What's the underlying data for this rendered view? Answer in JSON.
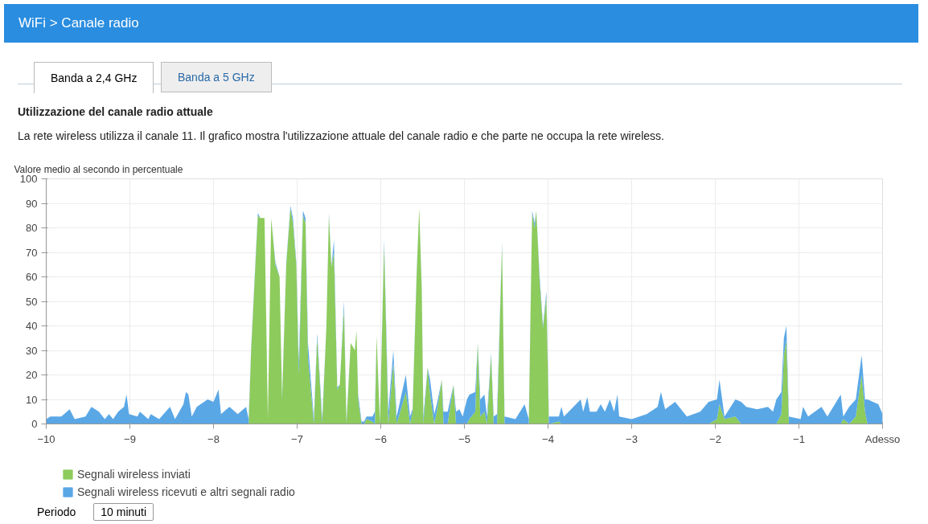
{
  "chart_data": {
    "type": "area",
    "stacked": true,
    "title": "Utilizzazione del canale radio attuale",
    "subtitle": "La rete wireless utilizza il canale 11. Il grafico mostra l'utilizzazione attuale del canale radio e che parte ne occupa la rete wireless.",
    "ylabel": "Valore medio al secondo in percentuale",
    "annotations": [
      "WiFi > Canale radio",
      "Banda a 2,4 GHz",
      "Banda a 5 GHz",
      "Periodo",
      "10 minuti"
    ],
    "x": [
      -10,
      -9.95,
      -9.82,
      -9.72,
      -9.66,
      -9.53,
      -9.46,
      -9.37,
      -9.3,
      -9.25,
      -9.2,
      -9.14,
      -9.07,
      -9.04,
      -9.01,
      -8.91,
      -8.88,
      -8.78,
      -8.75,
      -8.65,
      -8.52,
      -8.46,
      -8.36,
      -8.33,
      -8.3,
      -8.26,
      -8.2,
      -8.07,
      -8.0,
      -7.94,
      -7.91,
      -7.81,
      -7.71,
      -7.61,
      -7.58,
      -7.55,
      -7.47,
      -7.44,
      -7.39,
      -7.35,
      -7.31,
      -7.26,
      -7.21,
      -7.18,
      -7.13,
      -7.08,
      -7.05,
      -7.01,
      -6.98,
      -6.93,
      -6.9,
      -6.87,
      -6.8,
      -6.76,
      -6.7,
      -6.65,
      -6.62,
      -6.59,
      -6.56,
      -6.52,
      -6.49,
      -6.44,
      -6.41,
      -6.36,
      -6.31,
      -6.29,
      -6.27,
      -6.23,
      -6.2,
      -6.17,
      -6.1,
      -6.07,
      -6.05,
      -6.01,
      -5.96,
      -5.91,
      -5.85,
      -5.81,
      -5.7,
      -5.65,
      -5.62,
      -5.57,
      -5.54,
      -5.51,
      -5.49,
      -5.44,
      -5.41,
      -5.36,
      -5.33,
      -5.27,
      -5.25,
      -5.2,
      -5.13,
      -5.1,
      -5.06,
      -5.02,
      -4.97,
      -4.94,
      -4.87,
      -4.84,
      -4.81,
      -4.76,
      -4.73,
      -4.68,
      -4.65,
      -4.61,
      -4.55,
      -4.52,
      -4.39,
      -4.28,
      -4.23,
      -4.19,
      -4.16,
      -4.14,
      -4.1,
      -4.06,
      -4.02,
      -3.99,
      -3.87,
      -3.84,
      -3.81,
      -3.61,
      -3.58,
      -3.53,
      -3.5,
      -3.42,
      -3.37,
      -3.32,
      -3.26,
      -3.21,
      -3.17,
      -3.15,
      -3.0,
      -2.82,
      -2.69,
      -2.65,
      -2.6,
      -2.48,
      -2.34,
      -2.18,
      -2.08,
      -1.98,
      -1.95,
      -1.89,
      -1.76,
      -1.69,
      -1.63,
      -1.5,
      -1.37,
      -1.31,
      -1.27,
      -1.21,
      -1.18,
      -1.15,
      -1.12,
      -0.98,
      -0.95,
      -0.89,
      -0.73,
      -0.66,
      -0.5,
      -0.47,
      -0.4,
      -0.32,
      -0.25,
      -0.21,
      -0.18,
      -0.05,
      0
    ],
    "series": [
      {
        "name": "Segnali wireless inviati",
        "color": "#8dcb5c",
        "values": [
          0,
          0,
          0,
          0,
          0,
          0,
          0,
          0,
          0,
          0,
          0,
          0,
          0,
          0,
          0,
          0,
          0,
          0,
          0,
          0,
          0,
          0,
          0,
          0,
          0,
          0,
          0,
          0,
          0,
          0,
          0,
          0,
          0,
          0,
          0,
          30,
          85,
          84,
          84,
          2,
          84,
          65,
          60,
          10,
          65,
          88,
          82,
          65,
          20,
          85,
          82,
          27,
          0,
          35,
          0,
          40,
          85,
          64,
          70,
          14,
          16,
          47,
          0,
          33,
          30,
          38,
          10,
          0,
          0,
          2,
          1,
          0,
          36,
          0,
          73,
          0,
          25,
          0,
          13,
          0,
          5,
          62,
          88,
          55,
          0,
          23,
          12,
          0,
          5,
          18,
          0,
          0,
          16,
          0,
          0,
          0,
          0,
          2,
          5,
          33,
          3,
          5,
          0,
          28,
          0,
          0,
          73,
          0,
          0,
          0,
          0,
          86,
          80,
          87,
          58,
          39,
          52,
          0,
          1,
          0,
          0,
          0,
          0,
          0,
          0,
          0,
          0,
          0,
          0,
          0,
          0,
          0,
          0,
          0,
          0,
          0,
          0,
          0,
          0,
          0,
          0,
          2,
          8,
          2,
          3,
          0,
          0,
          0,
          0,
          0,
          0,
          4,
          28,
          34,
          0,
          0,
          0,
          0,
          0,
          0,
          0,
          2,
          0,
          3,
          20,
          5,
          0,
          0,
          0
        ]
      },
      {
        "name": "Segnali wireless ricevuti e altri segnali radio",
        "color": "#5aa7e6",
        "values": [
          2,
          3,
          3,
          6,
          2,
          3,
          7,
          5,
          2,
          4,
          2,
          5,
          7,
          12,
          4,
          3,
          5,
          2,
          4,
          2,
          7,
          2,
          8,
          13,
          12,
          3,
          7,
          10,
          9,
          14,
          4,
          7,
          4,
          7,
          2,
          1,
          1,
          0,
          0,
          0,
          0,
          1,
          0,
          1,
          1,
          1,
          2,
          1,
          5,
          2,
          2,
          6,
          2,
          2,
          2,
          0,
          1,
          0,
          5,
          1,
          0,
          3,
          1,
          0,
          0,
          0,
          2,
          1,
          1,
          1,
          2,
          5,
          0,
          1,
          2,
          5,
          5,
          3,
          7,
          3,
          1,
          1,
          0,
          1,
          3,
          0,
          6,
          4,
          3,
          0,
          5,
          5,
          0,
          5,
          6,
          3,
          10,
          10,
          8,
          0,
          7,
          7,
          3,
          1,
          3,
          4,
          1,
          3,
          2,
          8,
          2,
          1,
          2,
          0,
          2,
          1,
          2,
          3,
          2,
          7,
          3,
          10,
          5,
          11,
          5,
          5,
          8,
          5,
          10,
          5,
          12,
          3,
          2,
          4,
          7,
          13,
          6,
          9,
          3,
          5,
          9,
          8,
          10,
          1,
          7,
          9,
          7,
          6,
          7,
          5,
          10,
          9,
          7,
          6,
          3,
          2,
          7,
          3,
          7,
          3,
          12,
          1,
          7,
          7,
          8,
          5,
          10,
          8,
          4
        ]
      }
    ],
    "xlim": [
      -10,
      0
    ],
    "ylim": [
      0,
      100
    ],
    "xticks": [
      -10,
      -9,
      -8,
      -7,
      -6,
      -5,
      -4,
      -3,
      -2,
      -1,
      {
        "value": 0,
        "label": "Adesso"
      }
    ],
    "yticks": [
      0,
      10,
      20,
      30,
      40,
      50,
      60,
      70,
      80,
      90,
      100
    ],
    "grid": true,
    "legend": "bottom"
  }
}
